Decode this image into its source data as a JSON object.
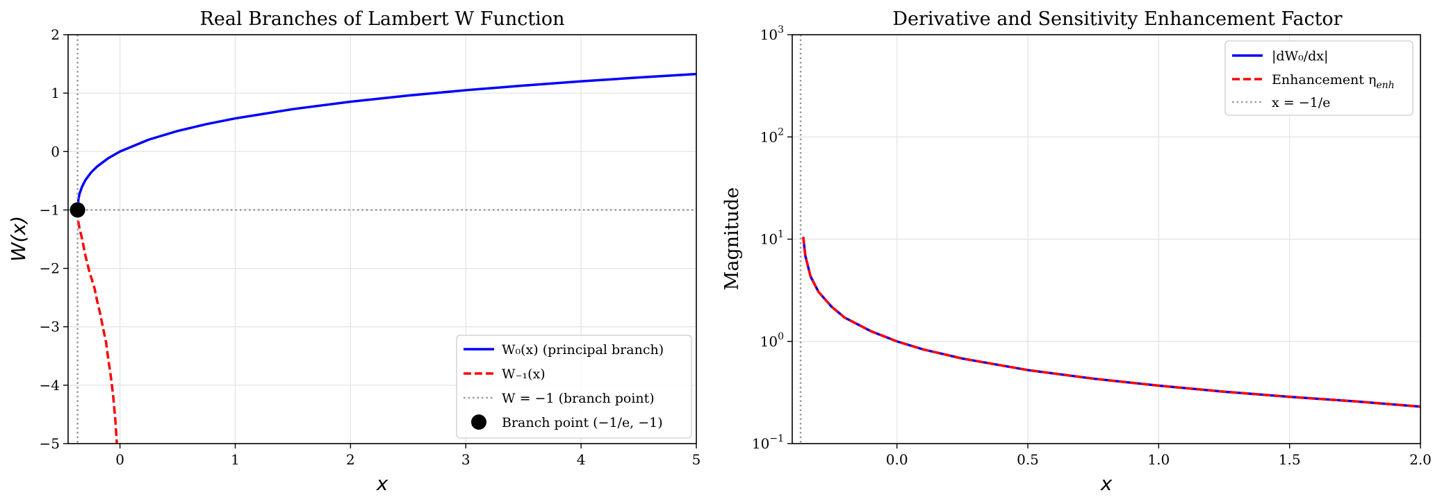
{
  "chart_data": [
    {
      "type": "line",
      "title": "Real Branches of Lambert W Function",
      "xlabel": "x",
      "ylabel": "W(x)",
      "xlim": [
        -0.45,
        5
      ],
      "ylim": [
        -5,
        2
      ],
      "xticks": [
        0,
        1,
        2,
        3,
        4,
        5
      ],
      "xtick_labels": [
        "0",
        "1",
        "2",
        "3",
        "4",
        "5"
      ],
      "yticks": [
        -5,
        -4,
        -3,
        -2,
        -1,
        0,
        1,
        2
      ],
      "ytick_labels": [
        "−5",
        "−4",
        "−3",
        "−2",
        "−1",
        "0",
        "1",
        "2"
      ],
      "grid": true,
      "legend_position": "lower-right",
      "series": [
        {
          "name": "W0(x) (principal branch)",
          "legend_label": "W₀(x) (principal branch)",
          "style": "solid",
          "color": "#0000ff",
          "x": [
            -0.3679,
            -0.36,
            -0.35,
            -0.33,
            -0.3,
            -0.25,
            -0.2,
            -0.1,
            0,
            0.25,
            0.5,
            0.75,
            1,
            1.5,
            2,
            2.5,
            3,
            3.5,
            4,
            4.5,
            5
          ],
          "y": [
            -1.0,
            -0.807,
            -0.717,
            -0.607,
            -0.489,
            -0.357,
            -0.259,
            -0.112,
            0,
            0.204,
            0.352,
            0.469,
            0.567,
            0.726,
            0.853,
            0.959,
            1.05,
            1.129,
            1.202,
            1.267,
            1.327
          ]
        },
        {
          "name": "W-1(x)",
          "legend_label": "W₋₁(x)",
          "style": "dashed",
          "color": "#ff0000",
          "x": [
            -0.3679,
            -0.36,
            -0.35,
            -0.33,
            -0.3,
            -0.27,
            -0.25,
            -0.22,
            -0.2,
            -0.17,
            -0.15,
            -0.12,
            -0.1,
            -0.08,
            -0.06,
            -0.04,
            -0.027
          ],
          "y": [
            -1.0,
            -1.222,
            -1.327,
            -1.482,
            -1.781,
            -2.022,
            -2.153,
            -2.346,
            -2.542,
            -2.788,
            -2.991,
            -3.273,
            -3.577,
            -3.84,
            -4.165,
            -4.6,
            -5.0
          ]
        },
        {
          "name": "W = −1 (branch point)",
          "legend_label": "W = −1 (branch point)",
          "style": "dotted",
          "color": "#999999",
          "y_constant": -1
        },
        {
          "name": "x = −1/e",
          "style": "dotted",
          "color": "#999999",
          "x_constant": -0.3679,
          "in_legend": false
        },
        {
          "name": "Branch point (−1/e, −1)",
          "legend_label": "Branch point (−1/e, −1)",
          "type": "scatter",
          "color": "#000000",
          "x": [
            -0.3679
          ],
          "y": [
            -1
          ]
        }
      ]
    },
    {
      "type": "line",
      "title": "Derivative and Sensitivity Enhancement Factor",
      "xlabel": "x",
      "ylabel": "Magnitude",
      "yscale": "log",
      "xlim": [
        -0.4,
        2
      ],
      "ylim": [
        0.1,
        1000
      ],
      "xticks": [
        0,
        0.5,
        1,
        1.5,
        2
      ],
      "xtick_labels": [
        "0.0",
        "0.5",
        "1.0",
        "1.5",
        "2.0"
      ],
      "yticks": [
        0.1,
        1,
        10,
        100,
        1000
      ],
      "ytick_labels": [
        {
          "base": "10",
          "exp": "−1"
        },
        {
          "base": "10",
          "exp": "0"
        },
        {
          "base": "10",
          "exp": "1"
        },
        {
          "base": "10",
          "exp": "2"
        },
        {
          "base": "10",
          "exp": "3"
        }
      ],
      "grid": true,
      "legend_position": "upper-right",
      "series": [
        {
          "name": "|dW0/dx|",
          "legend_label": "|dW₀/dx|",
          "style": "solid",
          "color": "#0000ff",
          "x": [
            -0.358,
            -0.35,
            -0.33,
            -0.3,
            -0.25,
            -0.2,
            -0.1,
            0,
            0.1,
            0.25,
            0.5,
            0.75,
            1,
            1.25,
            1.5,
            1.75,
            2
          ],
          "y": [
            10.5,
            6.9,
            4.32,
            3.06,
            2.19,
            1.71,
            1.26,
            1.0,
            0.835,
            0.679,
            0.524,
            0.432,
            0.369,
            0.322,
            0.287,
            0.259,
            0.23
          ]
        },
        {
          "name": "Enhancement η_enh",
          "legend_label": "Enhancement η",
          "legend_sub": "enh",
          "style": "dashed",
          "color": "#ff0000",
          "x": [
            -0.358,
            -0.35,
            -0.33,
            -0.3,
            -0.25,
            -0.2,
            -0.1,
            0,
            0.1,
            0.25,
            0.5,
            0.75,
            1,
            1.25,
            1.5,
            1.75,
            2
          ],
          "y": [
            10.5,
            6.9,
            4.32,
            3.06,
            2.19,
            1.71,
            1.26,
            1.0,
            0.835,
            0.679,
            0.524,
            0.432,
            0.369,
            0.322,
            0.287,
            0.259,
            0.23
          ]
        },
        {
          "name": "x = −1/e",
          "legend_label": "x = −1/e",
          "style": "dotted",
          "color": "#999999",
          "x_constant": -0.3679
        }
      ]
    }
  ]
}
